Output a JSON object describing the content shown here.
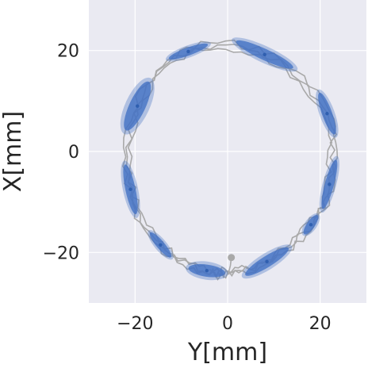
{
  "chart_data": {
    "type": "scatter",
    "title": "",
    "xlabel": "Y[mm]",
    "ylabel": "X[mm]",
    "xlim": [
      -30,
      30
    ],
    "ylim": [
      -30,
      30
    ],
    "x_ticks": [
      -20,
      0,
      20
    ],
    "y_ticks": [
      -20,
      0,
      20
    ],
    "x_tick_labels": [
      "−20",
      "0",
      "20"
    ],
    "y_tick_labels": [
      "−20",
      "0",
      "20"
    ],
    "grid": true,
    "style": "seaborn-darkgrid",
    "colors": {
      "background": "#eaeaf2",
      "grid": "#ffffff",
      "trajectory": "#a9a9a9",
      "ellipse": "#4472c4",
      "mean_point": "#2f5fb0",
      "start_point": "#a9a9a9"
    },
    "trajectory_loops": 3,
    "start_point": {
      "y": 0.8,
      "x": -21.0
    },
    "trajectory_tail": [
      {
        "y": 0.8,
        "x": -21.0
      },
      {
        "y": 0.6,
        "x": -22.6
      },
      {
        "y": 0.2,
        "x": -24.0
      }
    ],
    "gaussians": [
      {
        "y": -4.5,
        "x": -23.6,
        "angle_deg": -8,
        "major": 4.0,
        "minor": 1.2
      },
      {
        "y": 8.5,
        "x": -21.8,
        "angle_deg": 32,
        "major": 5.5,
        "minor": 1.1
      },
      {
        "y": 18.0,
        "x": -14.5,
        "angle_deg": 55,
        "major": 2.5,
        "minor": 0.8
      },
      {
        "y": 22.0,
        "x": -6.5,
        "angle_deg": 75,
        "major": 5.5,
        "minor": 0.9
      },
      {
        "y": 21.5,
        "x": 7.5,
        "angle_deg": -70,
        "major": 4.8,
        "minor": 1.0
      },
      {
        "y": 8.0,
        "x": 19.2,
        "angle_deg": -25,
        "major": 6.8,
        "minor": 1.1
      },
      {
        "y": -8.5,
        "x": 19.8,
        "angle_deg": 20,
        "major": 4.5,
        "minor": 0.8
      },
      {
        "y": -19.5,
        "x": 9.0,
        "angle_deg": 65,
        "major": 5.8,
        "minor": 1.6
      },
      {
        "y": -21.0,
        "x": -7.5,
        "angle_deg": -78,
        "major": 5.5,
        "minor": 1.0
      },
      {
        "y": -14.5,
        "x": -18.5,
        "angle_deg": -50,
        "major": 3.5,
        "minor": 0.8
      }
    ]
  }
}
